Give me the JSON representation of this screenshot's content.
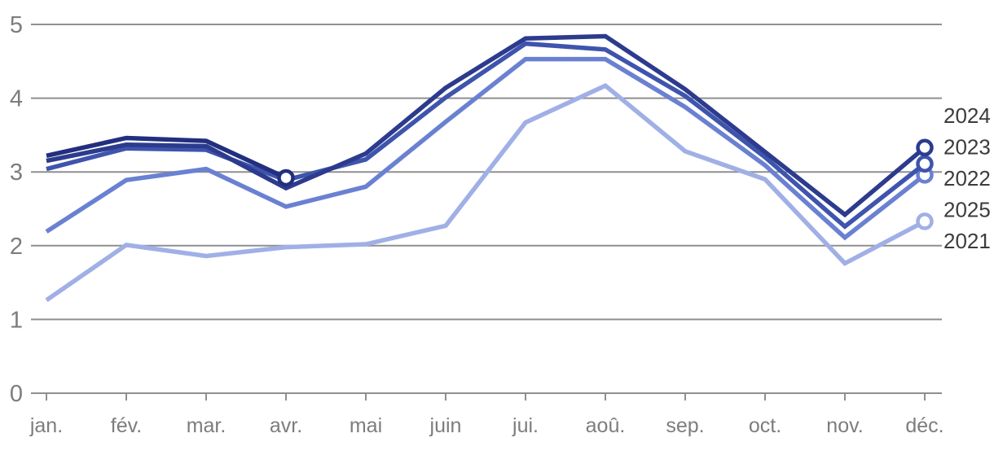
{
  "chart_data": {
    "type": "line",
    "title": "",
    "xlabel": "",
    "ylabel": "",
    "x_categories": [
      "jan.",
      "fév.",
      "mar.",
      "avr.",
      "mai",
      "juin",
      "jui.",
      "aoû.",
      "sep.",
      "oct.",
      "nov.",
      "déc."
    ],
    "y_ticks": [
      "0",
      "1",
      "2",
      "3",
      "4",
      "5"
    ],
    "ylim": [
      0,
      5
    ],
    "grid": "horizontal-only",
    "axis_color": "#8f8f8f",
    "tick_label_color": "#7d7d7d",
    "year_label_color": "#3c3c3c",
    "end_marker": "open-circle-white-fill",
    "legend_position": "right-end-labels",
    "right_labels_order": [
      "2024",
      "2023",
      "2022",
      "2025",
      "2021"
    ],
    "series": [
      {
        "name": "2021",
        "color": "#a0b0e6",
        "values": [
          1.26,
          2.01,
          1.86,
          1.98,
          2.02,
          2.27,
          3.67,
          4.17,
          3.28,
          2.9,
          1.76,
          2.33
        ]
      },
      {
        "name": "2022",
        "color": "#6a81d2",
        "values": [
          2.19,
          2.89,
          3.04,
          2.53,
          2.8,
          3.68,
          4.53,
          4.53,
          3.88,
          3.09,
          2.11,
          2.96
        ]
      },
      {
        "name": "2023",
        "color": "#3e54ad",
        "values": [
          3.04,
          3.32,
          3.3,
          2.89,
          3.17,
          4.01,
          4.74,
          4.66,
          4.03,
          3.2,
          2.26,
          3.11
        ]
      },
      {
        "name": "2024",
        "color": "#2c3b8d",
        "values": [
          3.15,
          3.37,
          3.35,
          2.78,
          3.25,
          4.14,
          4.81,
          4.84,
          4.12,
          3.27,
          2.42,
          3.33
        ]
      },
      {
        "name": "2025",
        "color": "#222f7f",
        "values": [
          3.22,
          3.46,
          3.42,
          2.92,
          null,
          null,
          null,
          null,
          null,
          null,
          null,
          null
        ]
      }
    ]
  }
}
